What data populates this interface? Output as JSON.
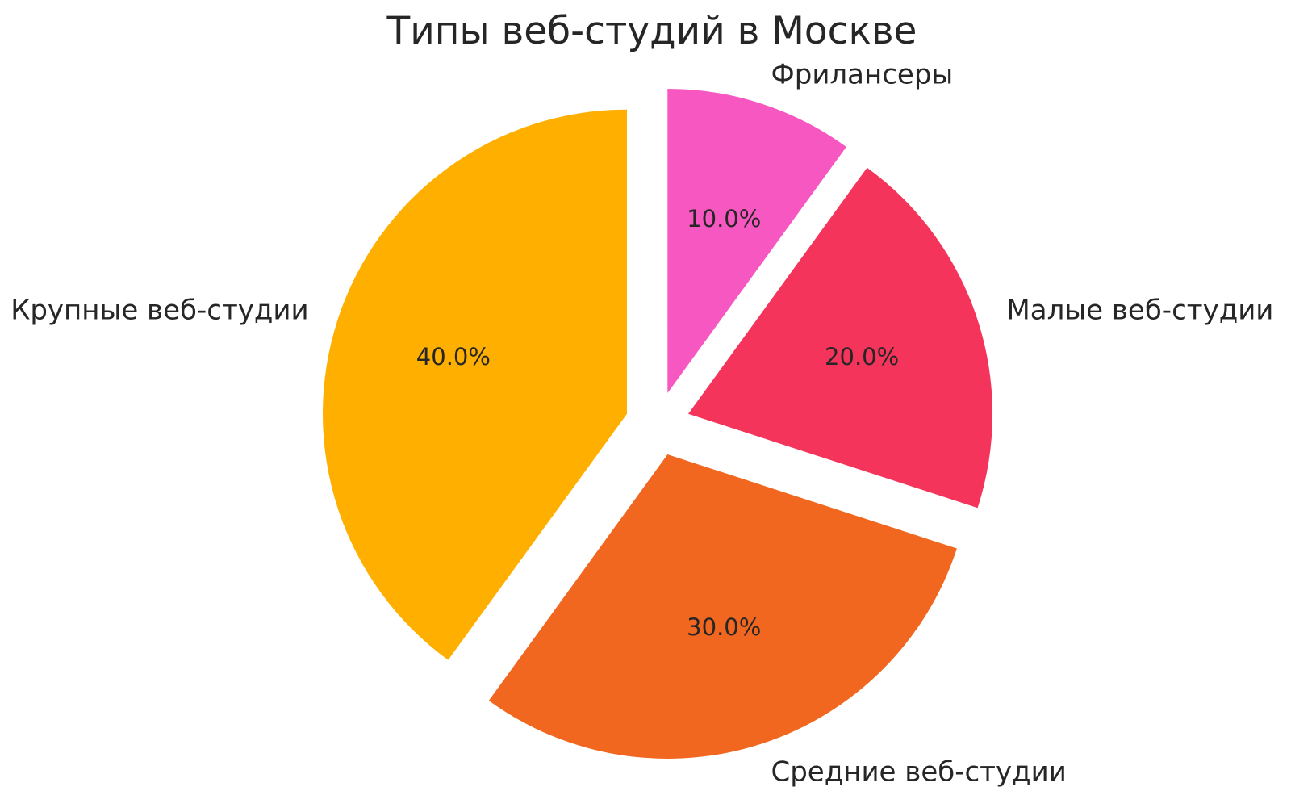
{
  "chart_data": {
    "type": "pie",
    "title": "Типы веб-студий в Москве",
    "slices": [
      {
        "label": "Фрилансеры",
        "value": 10.0,
        "pct_label": "10.0%",
        "color": "#F657C1"
      },
      {
        "label": "Малые веб-студии",
        "value": 20.0,
        "pct_label": "20.0%",
        "color": "#F4345A"
      },
      {
        "label": "Средние веб-студии",
        "value": 30.0,
        "pct_label": "30.0%",
        "color": "#F2671F"
      },
      {
        "label": "Крупные веб-студии",
        "value": 40.0,
        "pct_label": "40.0%",
        "color": "#FFAF00"
      }
    ],
    "start_angle": 90,
    "direction": "clockwise",
    "explode": 0.106,
    "labeldistance": 1.1,
    "pctdistance": 0.6,
    "legend": "none",
    "background_color": "#FFFFFF",
    "text_color": "#262626"
  }
}
